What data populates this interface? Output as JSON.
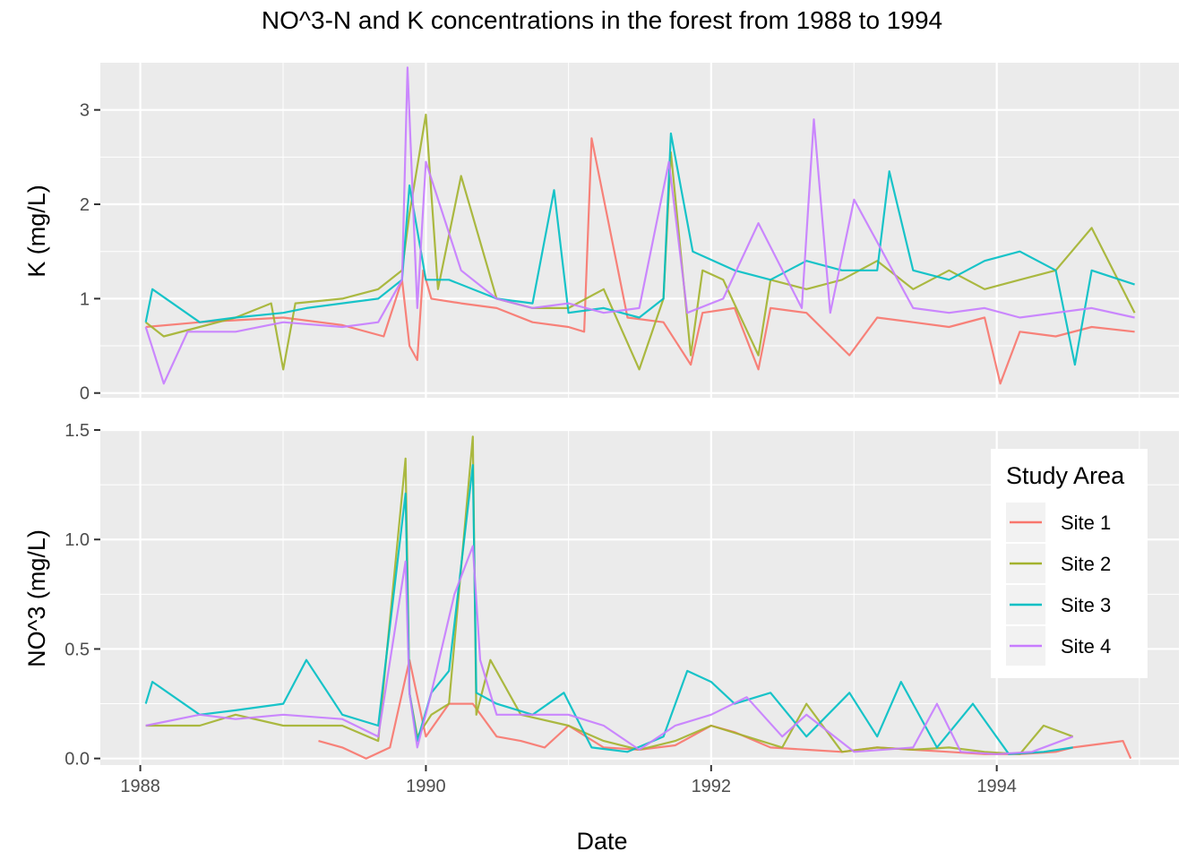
{
  "chart_data": {
    "type": "line",
    "title": "NO^3-N and K concentrations in the forest from 1988 to 1994",
    "xlabel": "Date",
    "x_range": [
      "1988-01-01",
      "1994-12-31"
    ],
    "x_ticks": [
      "1988",
      "1990",
      "1992",
      "1994"
    ],
    "legend": {
      "title": "Study Area",
      "placement": "right of lower panel",
      "entries": [
        "Site 1",
        "Site 2",
        "Site 3",
        "Site 4"
      ]
    },
    "colors": {
      "Site 1": "#F8766D",
      "Site 2": "#A3B22E",
      "Site 3": "#00BFC4",
      "Site 4": "#C77CFF",
      "panel_background": "#EBEBEB",
      "grid": "#FFFFFF"
    },
    "panels": [
      {
        "ylabel": "K (mg/L)",
        "ylim": [
          -0.05,
          3.5
        ],
        "y_ticks": [
          "0",
          "1",
          "2",
          "3"
        ],
        "series": [
          {
            "name": "Site 1",
            "x": [
              "1988-01-15",
              "1988-06-01",
              "1989-01-01",
              "1989-06-01",
              "1989-09-15",
              "1989-11-01",
              "1989-11-20",
              "1989-12-10",
              "1989-12-25",
              "1990-01-15",
              "1990-04-01",
              "1990-07-01",
              "1990-10-01",
              "1991-01-01",
              "1991-02-10",
              "1991-03-01",
              "1991-06-01",
              "1991-09-01",
              "1991-11-10",
              "1991-12-10",
              "1992-03-01",
              "1992-05-01",
              "1992-06-01",
              "1992-09-01",
              "1992-12-20",
              "1993-03-01",
              "1993-06-01",
              "1993-09-01",
              "1993-12-01",
              "1994-01-10",
              "1994-03-01",
              "1994-06-01",
              "1994-09-01",
              "1994-12-20"
            ],
            "values": [
              0.7,
              0.75,
              0.8,
              0.72,
              0.6,
              1.2,
              0.5,
              0.35,
              1.3,
              1.0,
              0.95,
              0.9,
              0.75,
              0.7,
              0.65,
              2.7,
              0.8,
              0.75,
              0.3,
              0.85,
              0.9,
              0.25,
              0.9,
              0.85,
              0.4,
              0.8,
              0.75,
              0.7,
              0.8,
              0.1,
              0.65,
              0.6,
              0.7,
              0.65
            ]
          },
          {
            "name": "Site 2",
            "x": [
              "1988-01-15",
              "1988-03-01",
              "1988-06-01",
              "1988-09-01",
              "1988-12-01",
              "1989-01-01",
              "1989-02-01",
              "1989-06-01",
              "1989-09-01",
              "1989-11-01",
              "1989-11-20",
              "1990-01-01",
              "1990-02-01",
              "1990-04-01",
              "1990-07-01",
              "1990-10-01",
              "1991-01-01",
              "1991-04-01",
              "1991-07-01",
              "1991-09-01",
              "1991-09-20",
              "1991-11-10",
              "1991-12-10",
              "1992-02-01",
              "1992-05-01",
              "1992-06-01",
              "1992-09-01",
              "1992-12-01",
              "1993-03-01",
              "1993-06-01",
              "1993-09-01",
              "1993-12-01",
              "1994-03-01",
              "1994-06-01",
              "1994-09-01",
              "1994-12-20"
            ],
            "values": [
              0.75,
              0.6,
              0.7,
              0.8,
              0.95,
              0.25,
              0.95,
              1.0,
              1.1,
              1.3,
              1.9,
              2.95,
              1.1,
              2.3,
              1.0,
              0.9,
              0.9,
              1.1,
              0.25,
              1.0,
              2.55,
              0.4,
              1.3,
              1.2,
              0.4,
              1.2,
              1.1,
              1.2,
              1.4,
              1.1,
              1.3,
              1.1,
              1.2,
              1.3,
              1.75,
              0.85
            ]
          },
          {
            "name": "Site 3",
            "x": [
              "1988-01-15",
              "1988-02-01",
              "1988-06-01",
              "1988-09-01",
              "1989-01-01",
              "1989-03-01",
              "1989-09-01",
              "1989-11-01",
              "1989-11-20",
              "1990-01-01",
              "1990-03-01",
              "1990-07-01",
              "1990-10-01",
              "1990-11-25",
              "1991-01-01",
              "1991-04-01",
              "1991-07-01",
              "1991-09-01",
              "1991-09-20",
              "1991-11-15",
              "1992-03-01",
              "1992-06-01",
              "1992-09-01",
              "1992-12-01",
              "1993-03-01",
              "1993-04-01",
              "1993-06-01",
              "1993-09-01",
              "1993-12-01",
              "1994-03-01",
              "1994-06-01",
              "1994-07-20",
              "1994-09-01",
              "1994-12-20"
            ],
            "values": [
              0.75,
              1.1,
              0.75,
              0.8,
              0.85,
              0.9,
              1.0,
              1.2,
              2.2,
              1.2,
              1.2,
              1.0,
              0.95,
              2.15,
              0.85,
              0.9,
              0.8,
              1.0,
              2.75,
              1.5,
              1.3,
              1.2,
              1.4,
              1.3,
              1.3,
              2.35,
              1.3,
              1.2,
              1.4,
              1.5,
              1.3,
              0.3,
              1.3,
              1.15
            ]
          },
          {
            "name": "Site 4",
            "x": [
              "1988-01-15",
              "1988-03-01",
              "1988-05-01",
              "1988-09-01",
              "1989-01-01",
              "1989-06-01",
              "1989-09-01",
              "1989-11-01",
              "1989-11-15",
              "1989-12-10",
              "1990-01-01",
              "1990-04-01",
              "1990-07-01",
              "1990-10-01",
              "1991-01-01",
              "1991-04-01",
              "1991-07-01",
              "1991-09-15",
              "1991-11-01",
              "1992-02-01",
              "1992-05-01",
              "1992-08-20",
              "1992-09-20",
              "1992-11-01",
              "1993-01-01",
              "1993-06-01",
              "1993-09-01",
              "1993-12-01",
              "1994-03-01",
              "1994-06-01",
              "1994-09-01",
              "1994-12-20"
            ],
            "values": [
              0.7,
              0.1,
              0.65,
              0.65,
              0.75,
              0.7,
              0.75,
              1.2,
              3.45,
              0.9,
              2.45,
              1.3,
              1.0,
              0.9,
              0.95,
              0.85,
              0.9,
              2.45,
              0.85,
              1.0,
              1.8,
              0.9,
              2.9,
              0.85,
              2.05,
              0.9,
              0.85,
              0.9,
              0.8,
              0.85,
              0.9,
              0.8
            ]
          }
        ]
      },
      {
        "ylabel": "NO^3 (mg/L)",
        "ylim": [
          -0.03,
          1.5
        ],
        "y_ticks": [
          "0.0",
          "0.5",
          "1.0",
          "1.5"
        ],
        "series": [
          {
            "name": "Site 1",
            "x": [
              "1989-04-01",
              "1989-06-01",
              "1989-08-01",
              "1989-10-01",
              "1989-11-20",
              "1990-01-01",
              "1990-03-01",
              "1990-05-01",
              "1990-07-01",
              "1990-09-01",
              "1990-11-01",
              "1991-01-01",
              "1991-04-01",
              "1991-07-01",
              "1991-10-01",
              "1992-01-01",
              "1992-03-01",
              "1992-06-01",
              "1992-09-01",
              "1992-12-01",
              "1993-03-01",
              "1993-06-01",
              "1993-09-01",
              "1993-12-01",
              "1994-03-01",
              "1994-06-01",
              "1994-07-15",
              "1994-11-20",
              "1994-12-10"
            ],
            "values": [
              0.08,
              0.05,
              0.0,
              0.05,
              0.45,
              0.1,
              0.25,
              0.25,
              0.1,
              0.08,
              0.05,
              0.15,
              0.05,
              0.04,
              0.06,
              0.15,
              0.12,
              0.05,
              0.04,
              0.03,
              0.05,
              0.04,
              0.03,
              0.02,
              0.02,
              0.03,
              0.05,
              0.08,
              0.0
            ]
          },
          {
            "name": "Site 2",
            "x": [
              "1988-01-15",
              "1988-06-01",
              "1988-09-01",
              "1989-01-01",
              "1989-06-01",
              "1989-09-01",
              "1989-11-10",
              "1989-11-20",
              "1989-12-10",
              "1990-01-15",
              "1990-03-01",
              "1990-05-01",
              "1990-05-10",
              "1990-06-15",
              "1990-09-01",
              "1991-01-01",
              "1991-04-01",
              "1991-07-01",
              "1991-10-01",
              "1992-01-01",
              "1992-04-01",
              "1992-07-01",
              "1992-09-01",
              "1992-12-01",
              "1993-03-01",
              "1993-06-01",
              "1993-09-01",
              "1993-12-01",
              "1994-03-01",
              "1994-05-01",
              "1994-07-15"
            ],
            "values": [
              0.15,
              0.15,
              0.2,
              0.15,
              0.15,
              0.08,
              1.37,
              0.3,
              0.1,
              0.2,
              0.25,
              1.47,
              0.2,
              0.45,
              0.2,
              0.15,
              0.08,
              0.04,
              0.08,
              0.15,
              0.1,
              0.05,
              0.25,
              0.03,
              0.05,
              0.04,
              0.05,
              0.03,
              0.02,
              0.15,
              0.1
            ]
          },
          {
            "name": "Site 3",
            "x": [
              "1988-01-15",
              "1988-02-01",
              "1988-06-01",
              "1988-09-01",
              "1989-01-01",
              "1989-03-01",
              "1989-06-01",
              "1989-09-01",
              "1989-11-10",
              "1989-11-20",
              "1989-12-10",
              "1990-01-15",
              "1990-03-01",
              "1990-05-01",
              "1990-05-10",
              "1990-07-01",
              "1990-10-01",
              "1990-12-20",
              "1991-03-01",
              "1991-06-01",
              "1991-09-01",
              "1991-11-01",
              "1992-01-01",
              "1992-03-01",
              "1992-06-01",
              "1992-09-01",
              "1992-12-20",
              "1993-03-01",
              "1993-05-01",
              "1993-08-01",
              "1993-11-01",
              "1994-02-01",
              "1994-05-01",
              "1994-07-15"
            ],
            "values": [
              0.25,
              0.35,
              0.2,
              0.22,
              0.25,
              0.45,
              0.2,
              0.15,
              1.21,
              0.3,
              0.08,
              0.3,
              0.4,
              1.34,
              0.3,
              0.25,
              0.2,
              0.3,
              0.05,
              0.03,
              0.1,
              0.4,
              0.35,
              0.25,
              0.3,
              0.1,
              0.3,
              0.1,
              0.35,
              0.05,
              0.25,
              0.02,
              0.03,
              0.05
            ]
          },
          {
            "name": "Site 4",
            "x": [
              "1988-01-15",
              "1988-06-01",
              "1988-09-01",
              "1989-01-01",
              "1989-06-01",
              "1989-09-01",
              "1989-11-10",
              "1989-11-20",
              "1989-12-10",
              "1990-01-15",
              "1990-03-15",
              "1990-05-01",
              "1990-05-20",
              "1990-07-01",
              "1990-10-01",
              "1991-01-01",
              "1991-04-01",
              "1991-07-01",
              "1991-10-01",
              "1992-01-01",
              "1992-04-01",
              "1992-07-01",
              "1992-09-01",
              "1993-01-01",
              "1993-06-01",
              "1993-08-01",
              "1993-10-01",
              "1994-01-01",
              "1994-04-01",
              "1994-07-15"
            ],
            "values": [
              0.15,
              0.2,
              0.18,
              0.2,
              0.18,
              0.1,
              0.9,
              0.3,
              0.05,
              0.3,
              0.75,
              0.97,
              0.45,
              0.2,
              0.2,
              0.2,
              0.15,
              0.04,
              0.15,
              0.2,
              0.28,
              0.1,
              0.2,
              0.03,
              0.05,
              0.25,
              0.03,
              0.02,
              0.03,
              0.1
            ]
          }
        ]
      }
    ]
  }
}
